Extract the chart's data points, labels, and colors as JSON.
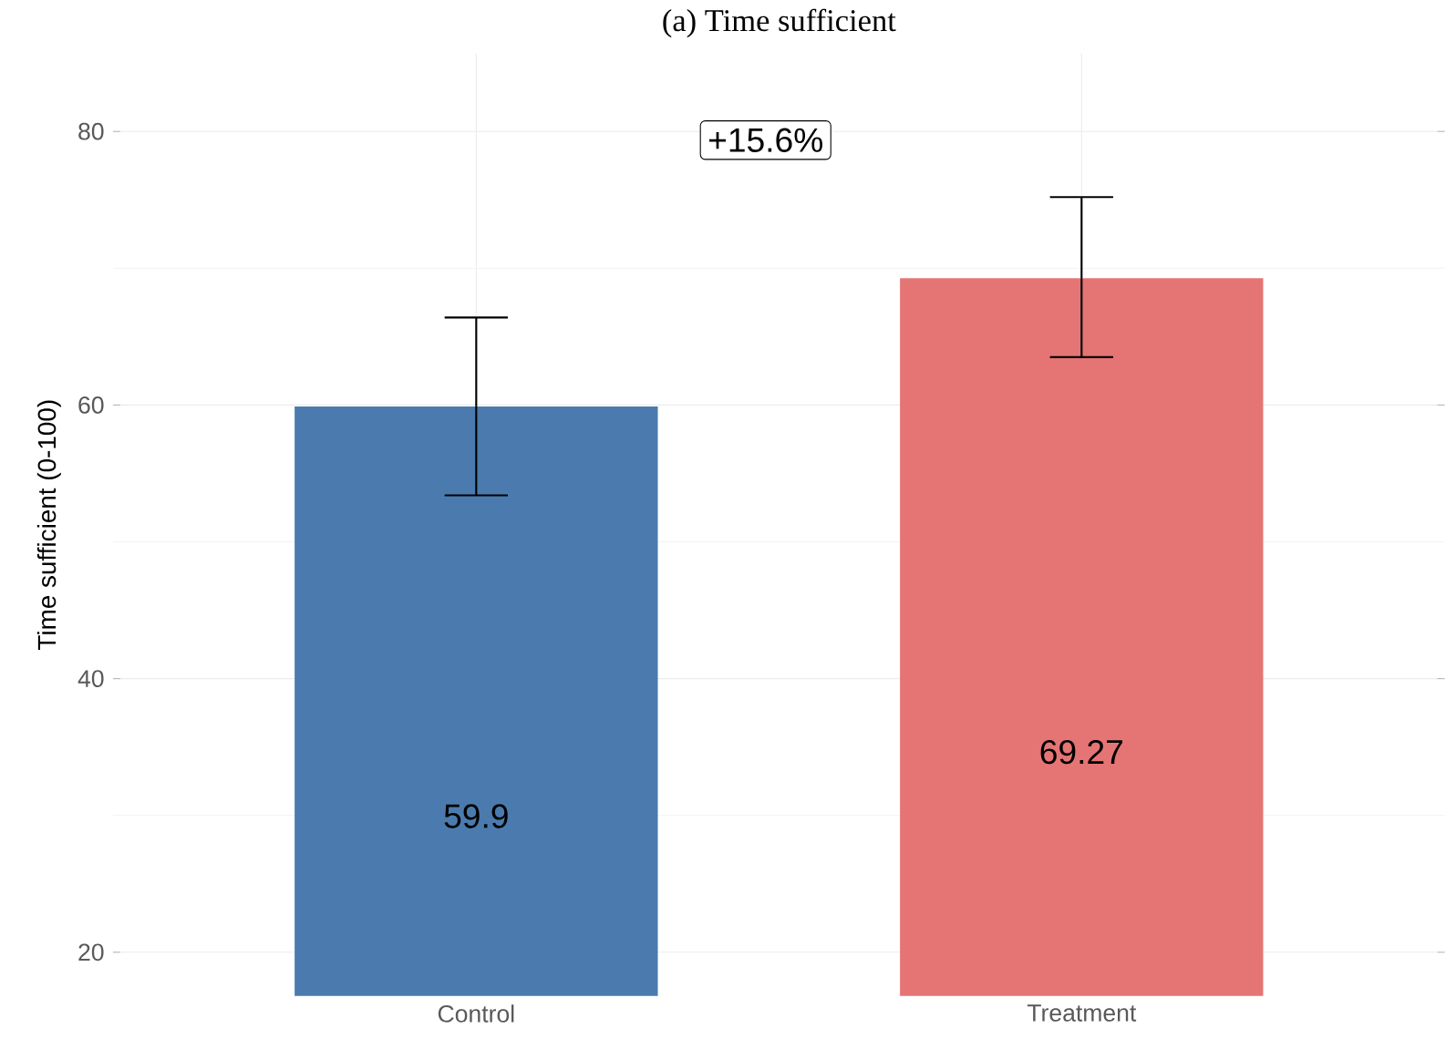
{
  "chart_data": {
    "type": "bar",
    "title": "(a) Time sufficient",
    "ylabel": "Time sufficient (0-100)",
    "categories": [
      "Control",
      "Treatment"
    ],
    "values": [
      59.9,
      69.27
    ],
    "colors": [
      "#4b7bae",
      "#e57574"
    ],
    "errors": [
      [
        53.4,
        66.4
      ],
      [
        63.5,
        75.2
      ]
    ],
    "data_labels": true,
    "annotations": [
      "+15.6%"
    ],
    "ylim": [
      16.8,
      85.7
    ],
    "yticks": [
      20,
      40,
      60,
      80
    ],
    "grid": true
  }
}
